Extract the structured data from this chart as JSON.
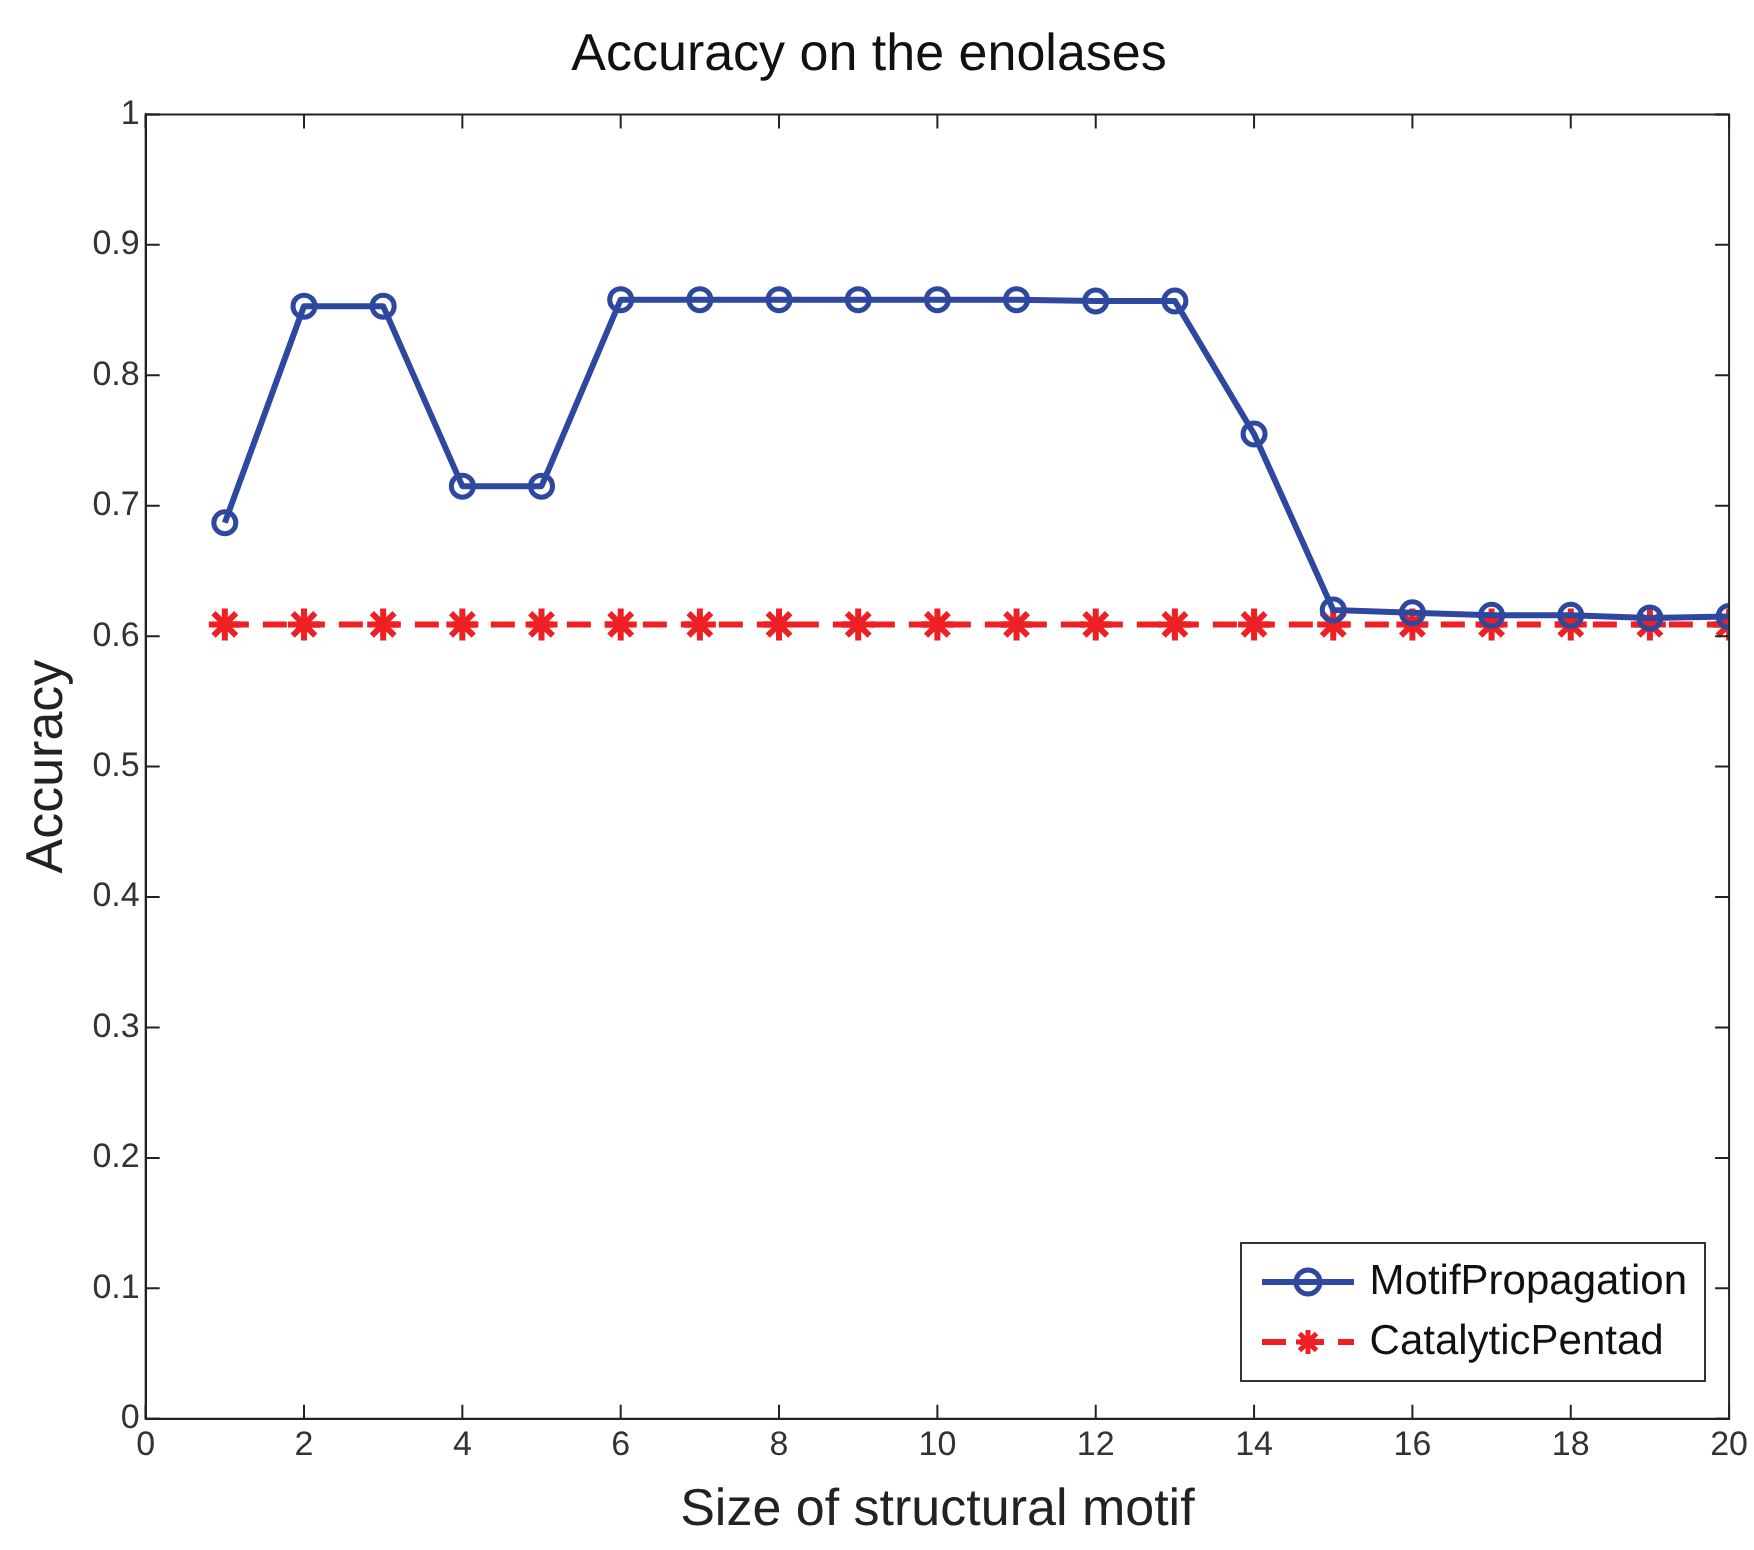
{
  "chart_data": {
    "type": "line",
    "title": "Accuracy on the enolases",
    "xlabel": "Size of structural motif",
    "ylabel": "Accuracy",
    "x": [
      1,
      2,
      3,
      4,
      5,
      6,
      7,
      8,
      9,
      10,
      11,
      12,
      13,
      14,
      15,
      16,
      17,
      18,
      19,
      20
    ],
    "series": [
      {
        "name": "MotifPropagation",
        "color": "#2e48a0",
        "marker": "circle",
        "line_style": "solid",
        "values": [
          0.687,
          0.853,
          0.853,
          0.715,
          0.715,
          0.858,
          0.858,
          0.858,
          0.858,
          0.858,
          0.858,
          0.857,
          0.857,
          0.755,
          0.62,
          0.618,
          0.616,
          0.616,
          0.614,
          0.615
        ]
      },
      {
        "name": "CatalyticPentad",
        "color": "#ee2024",
        "marker": "cross",
        "line_style": "dashed",
        "values": [
          0.609,
          0.609,
          0.609,
          0.609,
          0.609,
          0.609,
          0.609,
          0.609,
          0.609,
          0.609,
          0.609,
          0.609,
          0.609,
          0.609,
          0.609,
          0.609,
          0.609,
          0.609,
          0.609,
          0.609
        ]
      }
    ],
    "xlim": [
      0,
      20
    ],
    "xticks": [
      0,
      2,
      4,
      6,
      8,
      10,
      12,
      14,
      16,
      18,
      20
    ],
    "ylim": [
      0,
      1
    ],
    "yticks": [
      0,
      0.1,
      0.2,
      0.3,
      0.4,
      0.5,
      0.6,
      0.7,
      0.8,
      0.9,
      1
    ],
    "grid": false,
    "legend": "bottom right"
  }
}
